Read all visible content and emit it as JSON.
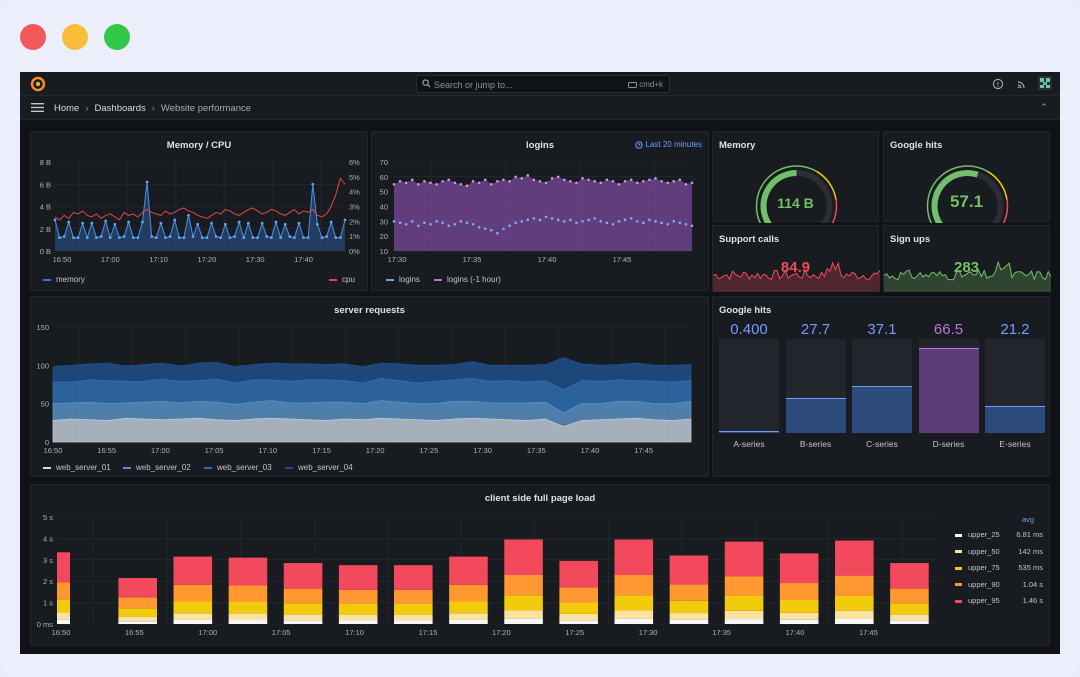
{
  "window": {
    "dots": [
      "#f25a5a",
      "#f7bd3b",
      "#33c748"
    ]
  },
  "topbar": {
    "search_placeholder": "Search or jump to...",
    "shortcut": "cmd+k",
    "icons": [
      "grafana-logo-icon",
      "search-icon",
      "keyboard-icon",
      "help-icon",
      "rss-icon",
      "avatar-icon"
    ]
  },
  "breadcrumb": {
    "items": [
      "Home",
      "Dashboards",
      "Website performance"
    ],
    "collapse_glyph": "⌃"
  },
  "panels": {
    "memory_cpu": {
      "title": "Memory / CPU",
      "legend": [
        {
          "name": "memory",
          "color": "#3274d9"
        },
        {
          "name": "cpu",
          "color": "#e0484c"
        }
      ]
    },
    "logins": {
      "title": "logins",
      "time_tag": "Last 20 minutes",
      "legend": [
        {
          "name": "logins",
          "color": "#6e9fff"
        },
        {
          "name": "logins (-1 hour)",
          "color": "#b877d9"
        }
      ]
    },
    "memory_gauge": {
      "title": "Memory",
      "value": "114 B",
      "fraction": 0.5,
      "color": "#73bf69"
    },
    "google_hits_gauge": {
      "title": "Google hits",
      "value": "57.1",
      "fraction": 0.571,
      "color": "#73bf69"
    },
    "support_calls": {
      "title": "Support calls",
      "value": "84.9",
      "color": "#f2495c"
    },
    "sign_ups": {
      "title": "Sign ups",
      "value": "283",
      "color": "#73bf69"
    },
    "server_requests": {
      "title": "server requests",
      "legend": [
        {
          "name": "web_server_01",
          "color": "#d5dde6"
        },
        {
          "name": "web_server_02",
          "color": "#5a8fc4"
        },
        {
          "name": "web_server_03",
          "color": "#2f6fb3"
        },
        {
          "name": "web_server_04",
          "color": "#1f4f8a"
        }
      ]
    },
    "google_hits_bars": {
      "title": "Google hits",
      "bars": [
        {
          "name": "A-series",
          "value": "0.400",
          "fraction": 0.02,
          "color": "#6e9fff"
        },
        {
          "name": "B-series",
          "value": "27.7",
          "fraction": 0.37,
          "color": "#6e9fff"
        },
        {
          "name": "C-series",
          "value": "37.1",
          "fraction": 0.5,
          "color": "#6e9fff"
        },
        {
          "name": "D-series",
          "value": "66.5",
          "fraction": 0.9,
          "color": "#b877d9"
        },
        {
          "name": "E-series",
          "value": "21.2",
          "fraction": 0.29,
          "color": "#6e9fff"
        }
      ]
    },
    "page_load": {
      "title": "client side full page load",
      "legend_header": "avg",
      "legend": [
        {
          "name": "upper_25",
          "value": "6.81 ms",
          "color": "#ffffff"
        },
        {
          "name": "upper_50",
          "value": "142 ms",
          "color": "#fce2a0"
        },
        {
          "name": "upper_75",
          "value": "535 ms",
          "color": "#f2cc0c"
        },
        {
          "name": "upper_90",
          "value": "1.04 s",
          "color": "#ff9830"
        },
        {
          "name": "upper_95",
          "value": "1.46 s",
          "color": "#f2495c"
        }
      ]
    }
  },
  "chart_data": [
    {
      "type": "line",
      "title": "Memory / CPU",
      "x_ticks": [
        "16:50",
        "17:00",
        "17:10",
        "17:20",
        "17:30",
        "17:40"
      ],
      "y_left_ticks": [
        "0 B",
        "2 B",
        "4 B",
        "6 B",
        "8 B"
      ],
      "y_right_ticks": [
        "0%",
        "1%",
        "2%",
        "3%",
        "4%",
        "5%",
        "6%"
      ],
      "ylim_left": [
        0,
        8
      ],
      "ylim_right": [
        0,
        6
      ],
      "series": [
        {
          "name": "memory",
          "axis": "left",
          "values": [
            2.8,
            1.2,
            1.3,
            2.6,
            1.2,
            1.2,
            2.5,
            1.2,
            2.5,
            1.2,
            1.3,
            2.7,
            1.2,
            2.4,
            1.2,
            1.3,
            2.6,
            1.2,
            1.2,
            2.6,
            6.2,
            1.3,
            1.2,
            2.5,
            1.2,
            1.3,
            2.8,
            1.2,
            1.2,
            3.2,
            1.3,
            2.4,
            1.2,
            1.2,
            2.5,
            1.3,
            1.2,
            2.4,
            1.2,
            1.3,
            2.6,
            1.2,
            2.5,
            1.2,
            1.2,
            2.5,
            1.3,
            1.2,
            2.6,
            1.2,
            2.4,
            1.3,
            1.2,
            2.5,
            1.2,
            1.2,
            6.0,
            2.4,
            1.2,
            1.3,
            2.6,
            1.2,
            1.2,
            2.8
          ]
        },
        {
          "name": "cpu",
          "axis": "right",
          "values": [
            2.3,
            2.1,
            2.4,
            2.2,
            2.6,
            2.5,
            2.7,
            2.4,
            2.3,
            2.5,
            2.2,
            2.4,
            2.5,
            2.3,
            2.1,
            2.6,
            2.4,
            2.5,
            2.3,
            2.6,
            2.8,
            2.6,
            2.5,
            2.4,
            2.7,
            2.5,
            2.6,
            2.8,
            2.9,
            2.7,
            2.6,
            2.4,
            2.3,
            2.2,
            2.4,
            2.6,
            2.5,
            2.8,
            2.7,
            2.5,
            2.4,
            2.6,
            2.8,
            2.9,
            2.7,
            2.5,
            2.6,
            2.8,
            2.7,
            2.5,
            2.4,
            2.6,
            2.8,
            2.5,
            2.7,
            2.6,
            2.8,
            2.4,
            2.3,
            2.5,
            3.0,
            3.8,
            4.9,
            4.5
          ]
        }
      ]
    },
    {
      "type": "line",
      "title": "logins",
      "x_ticks": [
        "17:30",
        "17:35",
        "17:40",
        "17:45"
      ],
      "y_ticks": [
        "10",
        "20",
        "30",
        "40",
        "50",
        "60",
        "70"
      ],
      "ylim": [
        10,
        70
      ],
      "series": [
        {
          "name": "logins",
          "values": [
            30,
            29,
            28,
            30,
            27,
            29,
            28,
            30,
            29,
            27,
            28,
            30,
            29,
            28,
            26,
            25,
            24,
            22,
            25,
            27,
            29,
            30,
            31,
            32,
            31,
            33,
            32,
            31,
            30,
            31,
            29,
            30,
            31,
            32,
            30,
            29,
            28,
            30,
            31,
            32,
            30,
            29,
            31,
            30,
            29,
            28,
            30,
            29,
            28,
            27
          ]
        },
        {
          "name": "logins (-1 hour)",
          "values": [
            55,
            57,
            56,
            58,
            55,
            57,
            56,
            55,
            57,
            58,
            56,
            55,
            54,
            57,
            56,
            58,
            55,
            57,
            58,
            57,
            60,
            59,
            61,
            58,
            57,
            56,
            59,
            60,
            58,
            57,
            56,
            59,
            58,
            57,
            56,
            58,
            57,
            55,
            57,
            58,
            56,
            57,
            58,
            59,
            57,
            56,
            57,
            58,
            55,
            56
          ]
        }
      ]
    },
    {
      "type": "area",
      "title": "server requests",
      "stacked": true,
      "x_ticks": [
        "16:50",
        "16:55",
        "17:00",
        "17:05",
        "17:10",
        "17:15",
        "17:20",
        "17:25",
        "17:30",
        "17:35",
        "17:40",
        "17:45"
      ],
      "y_ticks": [
        "0",
        "50",
        "100",
        "150"
      ],
      "ylim": [
        0,
        150
      ],
      "series": [
        {
          "name": "web_server_01",
          "values": [
            28,
            30,
            29,
            28,
            31,
            30,
            29,
            30,
            31,
            29,
            28,
            30,
            31,
            30,
            29,
            28,
            30,
            29,
            31,
            30,
            29,
            28,
            30,
            31,
            30,
            29,
            28,
            30,
            20,
            28,
            29,
            30,
            31,
            29,
            28,
            30
          ]
        },
        {
          "name": "web_server_02",
          "values": [
            22,
            21,
            23,
            22,
            20,
            22,
            24,
            21,
            22,
            23,
            21,
            22,
            23,
            21,
            22,
            24,
            22,
            21,
            23,
            22,
            21,
            22,
            23,
            22,
            21,
            22,
            23,
            22,
            18,
            22,
            21,
            23,
            22,
            21,
            22,
            23
          ]
        },
        {
          "name": "web_server_03",
          "values": [
            28,
            27,
            29,
            30,
            28,
            27,
            29,
            28,
            27,
            30,
            28,
            29,
            27,
            28,
            30,
            29,
            28,
            27,
            29,
            28,
            27,
            29,
            28,
            30,
            28,
            29,
            27,
            28,
            30,
            30,
            29,
            28,
            27,
            29,
            28,
            27
          ]
        },
        {
          "name": "web_server_04",
          "values": [
            20,
            22,
            21,
            23,
            20,
            22,
            21,
            20,
            23,
            22,
            21,
            20,
            22,
            23,
            21,
            20,
            22,
            21,
            20,
            22,
            23,
            21,
            20,
            22,
            21,
            20,
            22,
            21,
            42,
            22,
            21,
            20,
            23,
            21,
            22,
            21
          ]
        }
      ]
    },
    {
      "type": "bar",
      "title": "client side full page load",
      "stacked": true,
      "x_ticks": [
        "16:50",
        "16:55",
        "17:00",
        "17:05",
        "17:10",
        "17:15",
        "17:20",
        "17:25",
        "17:30",
        "17:35",
        "17:40",
        "17:45"
      ],
      "y_ticks": [
        "0 ms",
        "1 s",
        "2 s",
        "3 s",
        "4 s",
        "5 s"
      ],
      "ylim": [
        0,
        5
      ],
      "bar_totals": [
        3.35,
        2.15,
        3.15,
        3.1,
        2.85,
        2.75,
        2.75,
        3.15,
        3.95,
        2.95,
        3.95,
        3.2,
        3.85,
        3.3,
        3.9,
        2.85
      ],
      "series": [
        "upper_25",
        "upper_50",
        "upper_75",
        "upper_90",
        "upper_95"
      ]
    }
  ]
}
